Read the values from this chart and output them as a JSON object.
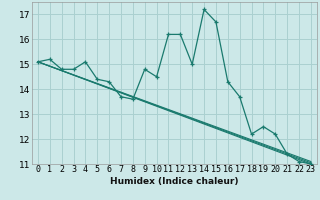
{
  "xlabel": "Humidex (Indice chaleur)",
  "bg_color": "#cce8e8",
  "grid_color": "#aad0d0",
  "line_color": "#1a7a6e",
  "xlim": [
    -0.5,
    23.5
  ],
  "ylim": [
    11,
    17.5
  ],
  "yticks": [
    11,
    12,
    13,
    14,
    15,
    16,
    17
  ],
  "xticks": [
    0,
    1,
    2,
    3,
    4,
    5,
    6,
    7,
    8,
    9,
    10,
    11,
    12,
    13,
    14,
    15,
    16,
    17,
    18,
    19,
    20,
    21,
    22,
    23
  ],
  "main_series": {
    "x": [
      0,
      1,
      2,
      3,
      4,
      5,
      6,
      7,
      8,
      9,
      10,
      11,
      12,
      13,
      14,
      15,
      16,
      17,
      18,
      19,
      20,
      21,
      22,
      23
    ],
    "y": [
      15.1,
      15.2,
      14.8,
      14.8,
      15.1,
      14.4,
      14.3,
      13.7,
      13.6,
      14.8,
      14.5,
      16.2,
      16.2,
      15.0,
      17.2,
      16.7,
      14.3,
      13.7,
      12.2,
      12.5,
      12.2,
      11.4,
      11.1,
      11.0
    ]
  },
  "trend_lines": [
    {
      "x": [
        0,
        23
      ],
      "y": [
        15.1,
        11.0
      ]
    },
    {
      "x": [
        0,
        23
      ],
      "y": [
        15.1,
        11.0
      ]
    },
    {
      "x": [
        0,
        23
      ],
      "y": [
        15.1,
        11.0
      ]
    }
  ],
  "xlabel_fontsize": 6.5,
  "tick_fontsize": 6.0
}
